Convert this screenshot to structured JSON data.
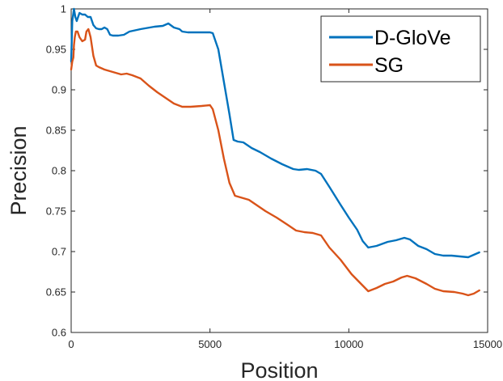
{
  "chart_data": {
    "type": "line",
    "title": "",
    "xlabel": "Position",
    "ylabel": "Precision",
    "xlim": [
      0,
      15000
    ],
    "ylim": [
      0.6,
      1.0
    ],
    "xticks": [
      "0",
      "5000",
      "10000",
      "15000"
    ],
    "yticks": [
      "0.6",
      "0.65",
      "0.7",
      "0.75",
      "0.8",
      "0.85",
      "0.9",
      "0.95",
      "1"
    ],
    "grid": false,
    "legend_position": "top-right",
    "series": [
      {
        "name": "D-GloVe",
        "color": "#0072BD",
        "points": [
          [
            0,
            0.935
          ],
          [
            20,
            0.96
          ],
          [
            40,
            0.985
          ],
          [
            60,
            0.99
          ],
          [
            80,
            0.995
          ],
          [
            100,
            1.0
          ],
          [
            150,
            0.99
          ],
          [
            200,
            0.985
          ],
          [
            250,
            0.99
          ],
          [
            300,
            0.995
          ],
          [
            400,
            0.993
          ],
          [
            500,
            0.993
          ],
          [
            600,
            0.99
          ],
          [
            700,
            0.99
          ],
          [
            800,
            0.98
          ],
          [
            900,
            0.976
          ],
          [
            1000,
            0.975
          ],
          [
            1100,
            0.975
          ],
          [
            1200,
            0.977
          ],
          [
            1300,
            0.975
          ],
          [
            1400,
            0.968
          ],
          [
            1500,
            0.967
          ],
          [
            1700,
            0.967
          ],
          [
            1900,
            0.968
          ],
          [
            2100,
            0.972
          ],
          [
            2500,
            0.975
          ],
          [
            3000,
            0.978
          ],
          [
            3300,
            0.979
          ],
          [
            3500,
            0.982
          ],
          [
            3700,
            0.977
          ],
          [
            3900,
            0.975
          ],
          [
            4000,
            0.972
          ],
          [
            4200,
            0.971
          ],
          [
            4600,
            0.971
          ],
          [
            5000,
            0.971
          ],
          [
            5100,
            0.97
          ],
          [
            5300,
            0.95
          ],
          [
            5500,
            0.91
          ],
          [
            5700,
            0.87
          ],
          [
            5850,
            0.838
          ],
          [
            6000,
            0.836
          ],
          [
            6200,
            0.835
          ],
          [
            6500,
            0.828
          ],
          [
            6800,
            0.823
          ],
          [
            7200,
            0.815
          ],
          [
            7600,
            0.808
          ],
          [
            8000,
            0.802
          ],
          [
            8200,
            0.801
          ],
          [
            8500,
            0.802
          ],
          [
            8800,
            0.8
          ],
          [
            9000,
            0.796
          ],
          [
            9300,
            0.78
          ],
          [
            9700,
            0.758
          ],
          [
            10000,
            0.742
          ],
          [
            10300,
            0.727
          ],
          [
            10500,
            0.713
          ],
          [
            10700,
            0.705
          ],
          [
            11000,
            0.707
          ],
          [
            11400,
            0.712
          ],
          [
            11700,
            0.714
          ],
          [
            12000,
            0.717
          ],
          [
            12200,
            0.715
          ],
          [
            12500,
            0.707
          ],
          [
            12800,
            0.703
          ],
          [
            13100,
            0.697
          ],
          [
            13400,
            0.695
          ],
          [
            13700,
            0.695
          ],
          [
            14000,
            0.694
          ],
          [
            14300,
            0.693
          ],
          [
            14500,
            0.696
          ],
          [
            14700,
            0.699
          ]
        ]
      },
      {
        "name": "SG",
        "color": "#D95319",
        "points": [
          [
            0,
            0.925
          ],
          [
            40,
            0.935
          ],
          [
            80,
            0.94
          ],
          [
            100,
            0.955
          ],
          [
            130,
            0.965
          ],
          [
            170,
            0.972
          ],
          [
            230,
            0.972
          ],
          [
            300,
            0.965
          ],
          [
            400,
            0.96
          ],
          [
            500,
            0.962
          ],
          [
            550,
            0.972
          ],
          [
            620,
            0.975
          ],
          [
            700,
            0.965
          ],
          [
            800,
            0.942
          ],
          [
            900,
            0.93
          ],
          [
            1000,
            0.928
          ],
          [
            1200,
            0.925
          ],
          [
            1500,
            0.922
          ],
          [
            1800,
            0.919
          ],
          [
            2000,
            0.92
          ],
          [
            2200,
            0.918
          ],
          [
            2500,
            0.914
          ],
          [
            2800,
            0.905
          ],
          [
            3100,
            0.897
          ],
          [
            3400,
            0.89
          ],
          [
            3700,
            0.883
          ],
          [
            4000,
            0.879
          ],
          [
            4300,
            0.879
          ],
          [
            4700,
            0.88
          ],
          [
            5000,
            0.881
          ],
          [
            5100,
            0.876
          ],
          [
            5300,
            0.85
          ],
          [
            5500,
            0.815
          ],
          [
            5700,
            0.785
          ],
          [
            5900,
            0.769
          ],
          [
            6100,
            0.767
          ],
          [
            6400,
            0.764
          ],
          [
            6700,
            0.757
          ],
          [
            7000,
            0.75
          ],
          [
            7400,
            0.742
          ],
          [
            7800,
            0.733
          ],
          [
            8100,
            0.726
          ],
          [
            8400,
            0.724
          ],
          [
            8700,
            0.723
          ],
          [
            9000,
            0.72
          ],
          [
            9300,
            0.705
          ],
          [
            9700,
            0.69
          ],
          [
            10100,
            0.672
          ],
          [
            10500,
            0.658
          ],
          [
            10700,
            0.651
          ],
          [
            11000,
            0.655
          ],
          [
            11300,
            0.66
          ],
          [
            11600,
            0.663
          ],
          [
            11900,
            0.668
          ],
          [
            12100,
            0.67
          ],
          [
            12400,
            0.667
          ],
          [
            12800,
            0.66
          ],
          [
            13100,
            0.654
          ],
          [
            13400,
            0.651
          ],
          [
            13800,
            0.65
          ],
          [
            14100,
            0.648
          ],
          [
            14300,
            0.646
          ],
          [
            14500,
            0.648
          ],
          [
            14700,
            0.652
          ]
        ]
      }
    ]
  }
}
